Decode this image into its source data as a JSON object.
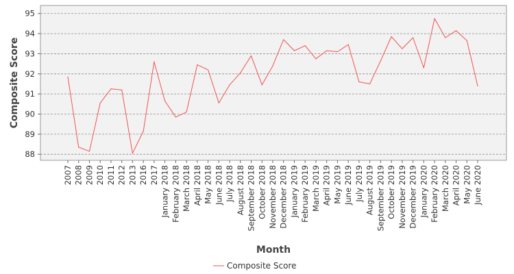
{
  "chart_data": {
    "type": "line",
    "title": "",
    "xlabel": "Month",
    "ylabel": "Composite Score",
    "ylim": [
      87.7,
      95.4
    ],
    "yticks": [
      88,
      89,
      90,
      91,
      92,
      93,
      94,
      95
    ],
    "grid": "horizontal dashed",
    "legend": "bottom-center",
    "categories": [
      "2007",
      "2008",
      "2009",
      "2010",
      "2011",
      "2012",
      "2013",
      "2016",
      "2017",
      "January 2018",
      "February 2018",
      "March 2018",
      "April 2018",
      "May 2018",
      "June 2018",
      "July 2018",
      "August 2018",
      "September 2018",
      "October 2018",
      "November 2018",
      "December 2018",
      "January 2019",
      "February 2019",
      "March 2019",
      "April 2019",
      "May 2019",
      "June 2019",
      "July 2019",
      "August 2019",
      "September 2019",
      "October 2019",
      "November 2019",
      "December 2019",
      "January 2020",
      "February 2020",
      "March 2020",
      "April 2020",
      "May 2020",
      "June 2020"
    ],
    "series": [
      {
        "name": "Composite Score",
        "color": "#ef5350",
        "values": [
          91.85,
          88.35,
          88.15,
          90.55,
          91.25,
          91.2,
          88.05,
          89.15,
          92.6,
          90.65,
          89.85,
          90.1,
          92.45,
          92.2,
          90.55,
          91.45,
          92.05,
          92.9,
          91.45,
          92.4,
          93.7,
          93.15,
          93.4,
          92.75,
          93.15,
          93.1,
          93.45,
          91.6,
          91.5,
          92.65,
          93.85,
          93.25,
          93.8,
          92.3,
          94.75,
          93.8,
          94.15,
          93.65,
          91.4
        ]
      }
    ]
  }
}
